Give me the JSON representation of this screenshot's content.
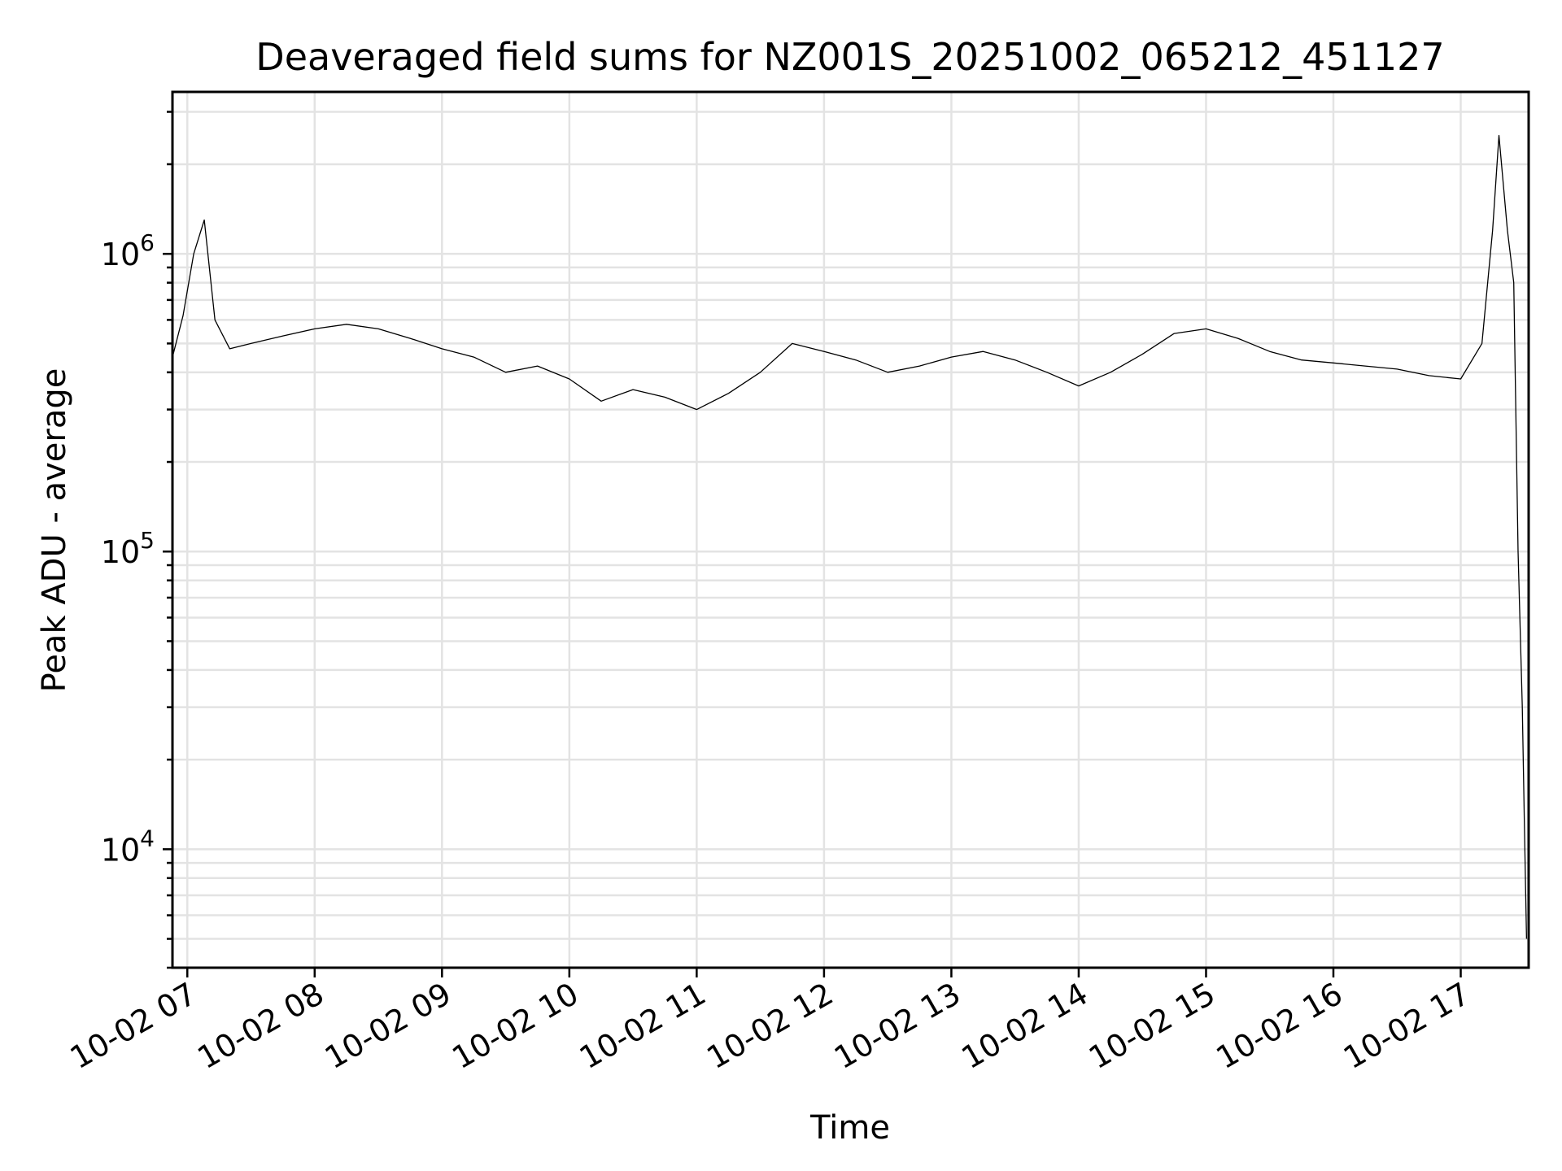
{
  "chart_data": {
    "type": "line",
    "title": "Deaveraged field sums for NZ001S_20251002_065212_451127",
    "xlabel": "Time",
    "ylabel": "Peak ADU - average",
    "yscale": "log",
    "grid": true,
    "line_color": "#000000",
    "grid_color": "#e3e3e3",
    "xlim": [
      "2025-10-02 06:53",
      "2025-10-02 17:32"
    ],
    "ylim": [
      4000,
      3500000
    ],
    "x_tick_labels": [
      "10-02 07",
      "10-02 08",
      "10-02 09",
      "10-02 10",
      "10-02 11",
      "10-02 12",
      "10-02 13",
      "10-02 14",
      "10-02 15",
      "10-02 16",
      "10-02 17"
    ],
    "y_tick_labels": [
      {
        "base": "10",
        "exp": "4",
        "value": 10000
      },
      {
        "base": "10",
        "exp": "5",
        "value": 100000
      },
      {
        "base": "10",
        "exp": "6",
        "value": 1000000
      }
    ],
    "series": [
      {
        "points": [
          [
            "2025-10-02 06:53",
            450000
          ],
          [
            "2025-10-02 06:58",
            620000
          ],
          [
            "2025-10-02 07:03",
            1000000
          ],
          [
            "2025-10-02 07:08",
            1300000
          ],
          [
            "2025-10-02 07:13",
            600000
          ],
          [
            "2025-10-02 07:20",
            480000
          ],
          [
            "2025-10-02 07:30",
            500000
          ],
          [
            "2025-10-02 07:45",
            530000
          ],
          [
            "2025-10-02 08:00",
            560000
          ],
          [
            "2025-10-02 08:15",
            580000
          ],
          [
            "2025-10-02 08:30",
            560000
          ],
          [
            "2025-10-02 08:45",
            520000
          ],
          [
            "2025-10-02 09:00",
            480000
          ],
          [
            "2025-10-02 09:15",
            450000
          ],
          [
            "2025-10-02 09:30",
            400000
          ],
          [
            "2025-10-02 09:45",
            420000
          ],
          [
            "2025-10-02 10:00",
            380000
          ],
          [
            "2025-10-02 10:15",
            320000
          ],
          [
            "2025-10-02 10:30",
            350000
          ],
          [
            "2025-10-02 10:45",
            330000
          ],
          [
            "2025-10-02 11:00",
            300000
          ],
          [
            "2025-10-02 11:15",
            340000
          ],
          [
            "2025-10-02 11:30",
            400000
          ],
          [
            "2025-10-02 11:45",
            500000
          ],
          [
            "2025-10-02 12:00",
            470000
          ],
          [
            "2025-10-02 12:15",
            440000
          ],
          [
            "2025-10-02 12:30",
            400000
          ],
          [
            "2025-10-02 12:45",
            420000
          ],
          [
            "2025-10-02 13:00",
            450000
          ],
          [
            "2025-10-02 13:15",
            470000
          ],
          [
            "2025-10-02 13:30",
            440000
          ],
          [
            "2025-10-02 13:45",
            400000
          ],
          [
            "2025-10-02 14:00",
            360000
          ],
          [
            "2025-10-02 14:15",
            400000
          ],
          [
            "2025-10-02 14:30",
            460000
          ],
          [
            "2025-10-02 14:45",
            540000
          ],
          [
            "2025-10-02 15:00",
            560000
          ],
          [
            "2025-10-02 15:15",
            520000
          ],
          [
            "2025-10-02 15:30",
            470000
          ],
          [
            "2025-10-02 15:45",
            440000
          ],
          [
            "2025-10-02 16:00",
            430000
          ],
          [
            "2025-10-02 16:15",
            420000
          ],
          [
            "2025-10-02 16:30",
            410000
          ],
          [
            "2025-10-02 16:45",
            390000
          ],
          [
            "2025-10-02 17:00",
            380000
          ],
          [
            "2025-10-02 17:10",
            500000
          ],
          [
            "2025-10-02 17:15",
            1200000
          ],
          [
            "2025-10-02 17:18",
            2500000
          ],
          [
            "2025-10-02 17:22",
            1200000
          ],
          [
            "2025-10-02 17:25",
            800000
          ],
          [
            "2025-10-02 17:27",
            100000
          ],
          [
            "2025-10-02 17:29",
            30000
          ],
          [
            "2025-10-02 17:30",
            12000
          ],
          [
            "2025-10-02 17:31",
            5000
          ]
        ]
      }
    ]
  }
}
